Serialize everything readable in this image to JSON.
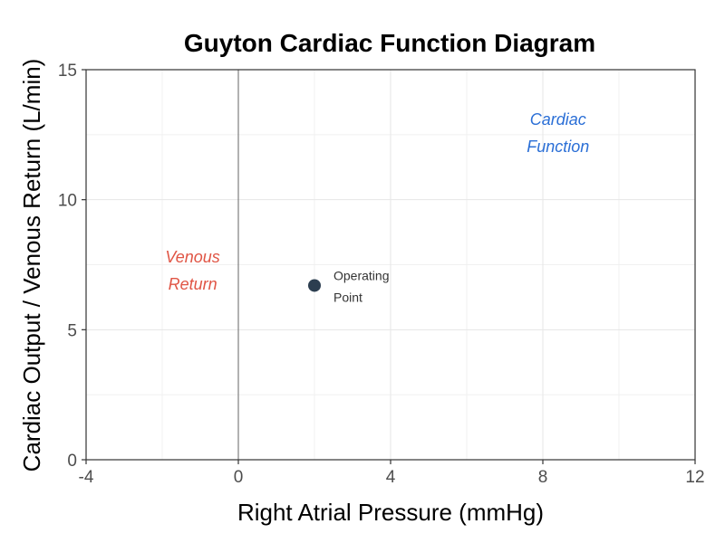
{
  "chart_data": {
    "type": "scatter",
    "title": "Guyton Cardiac Function Diagram",
    "xlabel": "Right Atrial Pressure (mmHg)",
    "ylabel": "Cardiac Output / Venous Return (L/min)",
    "xlim": [
      -4,
      12
    ],
    "ylim": [
      0,
      15
    ],
    "x_ticks": [
      -4,
      0,
      4,
      8,
      12
    ],
    "y_ticks": [
      0,
      5,
      10,
      15
    ],
    "x_tick_labels": [
      "-4",
      "0",
      "4",
      "8",
      "12"
    ],
    "y_tick_labels": [
      "0",
      "5",
      "10",
      "15"
    ],
    "grid": true,
    "vertical_reference_line_x": 0,
    "points": [
      {
        "x": 2.0,
        "y": 6.7,
        "label_lines": [
          "Operating",
          "Point"
        ]
      }
    ],
    "annotations": [
      {
        "lines": [
          "Venous",
          "Return"
        ],
        "x": -1.2,
        "y": 7.3,
        "color": "#e05545"
      },
      {
        "lines": [
          "Cardiac",
          "Function"
        ],
        "x": 8.4,
        "y": 12.6,
        "color": "#2b6fd6"
      }
    ],
    "colors": {
      "point": "#2c3e50",
      "venous_return": "#e05545",
      "cardiac_function": "#2b6fd6",
      "grid": "#e6e6e6",
      "axis": "#333333",
      "reference_line": "#666666"
    }
  }
}
